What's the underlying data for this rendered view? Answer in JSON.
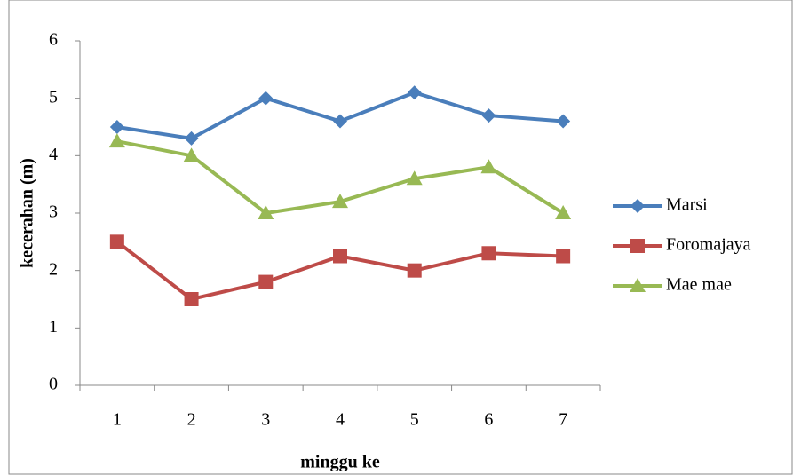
{
  "chart_data": {
    "type": "line",
    "x_label": "minggu ke",
    "y_label": "kecerahan  (m)",
    "categories": [
      "1",
      "2",
      "3",
      "4",
      "5",
      "6",
      "7"
    ],
    "series": [
      {
        "name": "Marsi",
        "color": "#4a7ebb",
        "marker": "diamond",
        "values": [
          4.5,
          4.3,
          5.0,
          4.6,
          5.1,
          4.7,
          4.6
        ]
      },
      {
        "name": "Foromajaya",
        "color": "#be4b48",
        "marker": "square",
        "values": [
          2.5,
          1.5,
          1.8,
          2.25,
          2.0,
          2.3,
          2.25
        ]
      },
      {
        "name": "Mae mae",
        "color": "#98b954",
        "marker": "triangle",
        "values": [
          4.25,
          4.0,
          3.0,
          3.2,
          3.6,
          3.8,
          3.0
        ]
      }
    ],
    "ylim": [
      0,
      6
    ],
    "yticks": [
      0,
      1,
      2,
      3,
      4,
      5,
      6
    ],
    "legend": "right"
  }
}
